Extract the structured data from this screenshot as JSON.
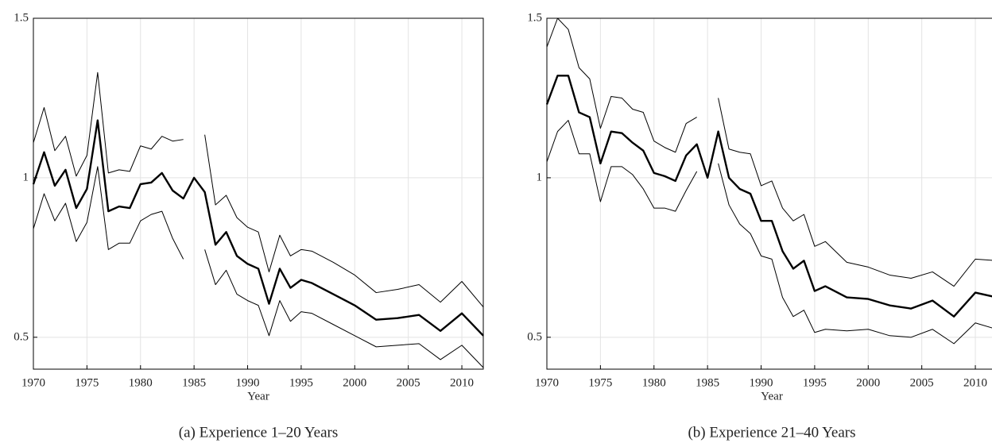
{
  "chart_data": [
    {
      "type": "line",
      "title": "(a) Experience 1–20 Years",
      "xlabel": "Year",
      "x": [
        1970,
        1971,
        1972,
        1973,
        1974,
        1975,
        1976,
        1977,
        1978,
        1979,
        1980,
        1981,
        1982,
        1983,
        1984,
        1985,
        1986,
        1987,
        1988,
        1989,
        1990,
        1991,
        1992,
        1993,
        1994,
        1995,
        1996,
        1998,
        2000,
        2002,
        2004,
        2006,
        2008,
        2010,
        2012
      ],
      "xlim": [
        1970,
        2012
      ],
      "xticks": [
        1970,
        1975,
        1980,
        1985,
        1990,
        1995,
        2000,
        2005,
        2010
      ],
      "ylim": [
        0.4,
        1.5
      ],
      "yticks": [
        0.5,
        1,
        1.5
      ],
      "grid": true,
      "series": [
        {
          "color": "#000000",
          "width": 2.4,
          "values": [
            0.98,
            1.08,
            0.975,
            1.025,
            0.905,
            0.965,
            1.18,
            0.895,
            0.91,
            0.905,
            0.98,
            0.985,
            1.015,
            0.96,
            0.935,
            1.0,
            0.955,
            0.79,
            0.83,
            0.755,
            0.73,
            0.715,
            0.605,
            0.715,
            0.655,
            0.68,
            0.67,
            0.635,
            0.6,
            0.555,
            0.56,
            0.57,
            0.52,
            0.575,
            0.505
          ]
        },
        {
          "color": "#000000",
          "width": 1,
          "values": [
            1.11,
            1.22,
            1.085,
            1.13,
            1.005,
            1.07,
            1.33,
            1.015,
            1.025,
            1.02,
            1.1,
            1.09,
            1.13,
            1.115,
            1.12,
            null,
            1.135,
            0.915,
            0.945,
            0.875,
            0.845,
            0.83,
            0.705,
            0.82,
            0.755,
            0.775,
            0.77,
            0.735,
            0.695,
            0.64,
            0.65,
            0.665,
            0.61,
            0.675,
            0.595
          ]
        },
        {
          "color": "#000000",
          "width": 1,
          "values": [
            0.84,
            0.95,
            0.865,
            0.92,
            0.8,
            0.86,
            1.035,
            0.775,
            0.795,
            0.795,
            0.865,
            0.885,
            0.895,
            0.81,
            0.745,
            null,
            0.775,
            0.665,
            0.71,
            0.635,
            0.615,
            0.6,
            0.505,
            0.615,
            0.55,
            0.58,
            0.575,
            0.54,
            0.505,
            0.47,
            0.475,
            0.48,
            0.43,
            0.475,
            0.405
          ]
        }
      ]
    },
    {
      "type": "line",
      "title": "(b) Experience 21–40 Years",
      "xlabel": "Year",
      "x": [
        1970,
        1971,
        1972,
        1973,
        1974,
        1975,
        1976,
        1977,
        1978,
        1979,
        1980,
        1981,
        1982,
        1983,
        1984,
        1985,
        1986,
        1987,
        1988,
        1989,
        1990,
        1991,
        1992,
        1993,
        1994,
        1995,
        1996,
        1998,
        2000,
        2002,
        2004,
        2006,
        2008,
        2010,
        2012
      ],
      "xlim": [
        1970,
        2012
      ],
      "xticks": [
        1970,
        1975,
        1980,
        1985,
        1990,
        1995,
        2000,
        2005,
        2010
      ],
      "ylim": [
        0.4,
        1.5
      ],
      "yticks": [
        0.5,
        1,
        1.5
      ],
      "grid": true,
      "series": [
        {
          "color": "#000000",
          "width": 2.4,
          "values": [
            1.23,
            1.32,
            1.32,
            1.205,
            1.19,
            1.045,
            1.145,
            1.14,
            1.11,
            1.085,
            1.015,
            1.005,
            0.99,
            1.07,
            1.105,
            1.0,
            1.145,
            1.0,
            0.965,
            0.95,
            0.865,
            0.865,
            0.77,
            0.715,
            0.74,
            0.645,
            0.66,
            0.625,
            0.62,
            0.6,
            0.59,
            0.615,
            0.565,
            0.64,
            0.625
          ]
        },
        {
          "color": "#000000",
          "width": 1,
          "values": [
            1.41,
            1.5,
            1.465,
            1.345,
            1.31,
            1.155,
            1.255,
            1.25,
            1.215,
            1.205,
            1.115,
            1.095,
            1.08,
            1.17,
            1.19,
            null,
            1.25,
            1.09,
            1.08,
            1.075,
            0.975,
            0.99,
            0.905,
            0.865,
            0.885,
            0.785,
            0.8,
            0.735,
            0.72,
            0.695,
            0.685,
            0.705,
            0.66,
            0.745,
            0.74
          ]
        },
        {
          "color": "#000000",
          "width": 1,
          "values": [
            1.05,
            1.145,
            1.18,
            1.075,
            1.075,
            0.925,
            1.035,
            1.035,
            1.01,
            0.965,
            0.905,
            0.905,
            0.895,
            0.96,
            1.02,
            null,
            1.045,
            0.915,
            0.855,
            0.825,
            0.755,
            0.745,
            0.625,
            0.565,
            0.585,
            0.515,
            0.525,
            0.52,
            0.525,
            0.505,
            0.5,
            0.525,
            0.48,
            0.545,
            0.525
          ]
        }
      ]
    }
  ]
}
